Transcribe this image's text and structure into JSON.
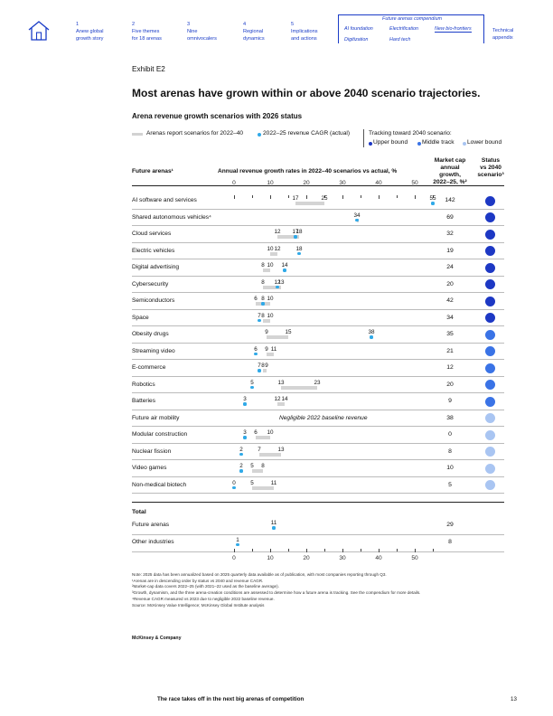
{
  "nav": {
    "items": [
      {
        "num": "1",
        "l1": "Anew global",
        "l2": "growth story"
      },
      {
        "num": "2",
        "l1": "Five themes",
        "l2": "for 18 arenas"
      },
      {
        "num": "3",
        "l1": "Nine",
        "l2": "omnivocalers"
      },
      {
        "num": "4",
        "l1": "Regional",
        "l2": "dynamics"
      },
      {
        "num": "5",
        "l1": "Implications",
        "l2": "and actions"
      }
    ],
    "compendium_title": "Future arenas compendium",
    "compendium_links": [
      "AI foundation",
      "Electrification",
      "New bio-frontiers",
      "Digitization",
      "Hard tech"
    ],
    "technical": {
      "l1": "Technical",
      "l2": "appendix"
    },
    "accent": "#1a3cc7"
  },
  "exhibit_label": "Exhibit E2",
  "headline": "Most arenas have grown within or above 2040 scenario trajectories.",
  "subtitle": "Arena revenue growth scenarios with 2026 status",
  "legend": {
    "scenarios": "Arenas report scenarios for 2022–40",
    "actual": "2022–25 revenue CAGR (actual)",
    "tracking_title": "Tracking toward 2040 scenario:",
    "upper": "Upper bound",
    "middle": "Middle track",
    "lower": "Lower bound"
  },
  "headers": {
    "arenas": "Future arenas¹",
    "growth": "Annual revenue growth rates in 2022–40 scenarios vs actual, %",
    "mc1": "Market cap",
    "mc2": "annual growth,",
    "mc3": "2022–25, %²",
    "st1": "Status",
    "st2": "vs 2040",
    "st3": "scenario³"
  },
  "colors": {
    "upper": "#1d38c4",
    "middle": "#3a73e6",
    "lower": "#a9c5f2",
    "actual_dot": "#2fa9e8",
    "scenario_bar": "#d4d4d4"
  },
  "chart_data": {
    "type": "range-dot",
    "title": "Arena revenue growth scenarios with 2026 status",
    "xlabel": "Annual revenue growth rates in 2022–40 scenarios vs actual, %",
    "xlim": [
      0,
      55
    ],
    "xticks": [
      "0",
      "10",
      "20",
      "30",
      "40",
      "50"
    ],
    "grid": false,
    "rows": [
      {
        "name": "AI software and services",
        "low": 17,
        "high": 25,
        "actual": 55,
        "low_label": "17",
        "high_label": "25",
        "actual_label": "55",
        "market_cap": "142",
        "status": "upper"
      },
      {
        "name": "Shared autonomous vehicles⁴",
        "low": 34,
        "high": 34,
        "actual": 34,
        "low_label": "",
        "high_label": "",
        "actual_label": "34",
        "market_cap": "69",
        "status": "upper"
      },
      {
        "name": "Cloud services",
        "low": 12,
        "high": 18,
        "actual": 17,
        "low_label": "12",
        "high_label": "18",
        "actual_label": "17",
        "market_cap": "32",
        "status": "upper"
      },
      {
        "name": "Electric vehicles",
        "low": 10,
        "high": 12,
        "actual": 18,
        "low_label": "10",
        "high_label": "12",
        "actual_label": "18",
        "market_cap": "19",
        "status": "upper"
      },
      {
        "name": "Digital advertising",
        "low": 8,
        "high": 10,
        "actual": 14,
        "low_label": "8",
        "high_label": "10",
        "actual_label": "14",
        "market_cap": "24",
        "status": "upper"
      },
      {
        "name": "Cybersecurity",
        "low": 8,
        "high": 13,
        "actual": 12,
        "low_label": "8",
        "high_label": "13",
        "actual_label": "12",
        "market_cap": "20",
        "status": "upper"
      },
      {
        "name": "Semiconductors",
        "low": 6,
        "high": 10,
        "actual": 8,
        "low_label": "6",
        "high_label": "10",
        "actual_label": "8",
        "market_cap": "42",
        "status": "upper"
      },
      {
        "name": "Space",
        "low": 8,
        "high": 10,
        "actual": 7,
        "low_label": "8",
        "high_label": "10",
        "actual_label": "7",
        "market_cap": "34",
        "status": "upper"
      },
      {
        "name": "Obesity drugs",
        "low": 9,
        "high": 15,
        "actual": 38,
        "low_label": "9",
        "high_label": "15",
        "actual_label": "38",
        "market_cap": "35",
        "status": "middle"
      },
      {
        "name": "Streaming video",
        "low": 9,
        "high": 11,
        "actual": 6,
        "low_label": "9",
        "high_label": "11",
        "actual_label": "6",
        "market_cap": "21",
        "status": "middle"
      },
      {
        "name": "E-commerce",
        "low": 8,
        "high": 9,
        "actual": 7,
        "low_label": "8",
        "high_label": "9",
        "actual_label": "7",
        "market_cap": "12",
        "status": "middle"
      },
      {
        "name": "Robotics",
        "low": 13,
        "high": 23,
        "actual": 5,
        "low_label": "13",
        "high_label": "23",
        "actual_label": "5",
        "market_cap": "20",
        "status": "middle"
      },
      {
        "name": "Batteries",
        "low": 12,
        "high": 14,
        "actual": 3,
        "low_label": "12",
        "high_label": "14",
        "actual_label": "3",
        "market_cap": "9",
        "status": "middle"
      },
      {
        "name": "Future air mobility",
        "note": "Negligible 2022 baseline revenue",
        "market_cap": "38",
        "status": "lower"
      },
      {
        "name": "Modular construction",
        "low": 6,
        "high": 10,
        "actual": 3,
        "low_label": "6",
        "high_label": "10",
        "actual_label": "3",
        "market_cap": "0",
        "status": "lower"
      },
      {
        "name": "Nuclear fission",
        "low": 7,
        "high": 13,
        "actual": 2,
        "low_label": "7",
        "high_label": "13",
        "actual_label": "2",
        "market_cap": "8",
        "status": "lower"
      },
      {
        "name": "Video games",
        "low": 5,
        "high": 8,
        "actual": 2,
        "low_label": "5",
        "high_label": "8",
        "actual_label": "2",
        "market_cap": "10",
        "status": "lower"
      },
      {
        "name": "Non-medical biotech",
        "low": 5,
        "high": 11,
        "actual": 0,
        "low_label": "5",
        "high_label": "11",
        "actual_label": "0",
        "market_cap": "5",
        "status": "lower"
      }
    ],
    "total": {
      "title": "Total",
      "rows": [
        {
          "name": "Future arenas",
          "actual": 11,
          "actual_label": "11",
          "market_cap": "29"
        },
        {
          "name": "Other industries",
          "actual": 1,
          "actual_label": "1",
          "market_cap": "8"
        }
      ]
    }
  },
  "notes": [
    "Note: 2025 data has been annualized based on 2025 quarterly data available as of publication, with most companies reporting through Q3.",
    "¹Arenas are in descending order by status vs 2040 and revenue CAGR.",
    "²Market-cap data covers 2022–25 (with 2021–22 used as the baseline average).",
    "³Growth, dynamism, and the three arena-creation conditions are assessed to determine how a future arena is tracking. See the compendium for more details.",
    "⁴Revenue CAGR measured vs 2023 due to negligible 2022 baseline revenue.",
    "Source: McKinsey Value Intelligence; McKinsey Global Institute analysis"
  ],
  "credit": "McKinsey & Company",
  "footer": "The race takes off in the next big arenas of competition",
  "page_number": "13"
}
